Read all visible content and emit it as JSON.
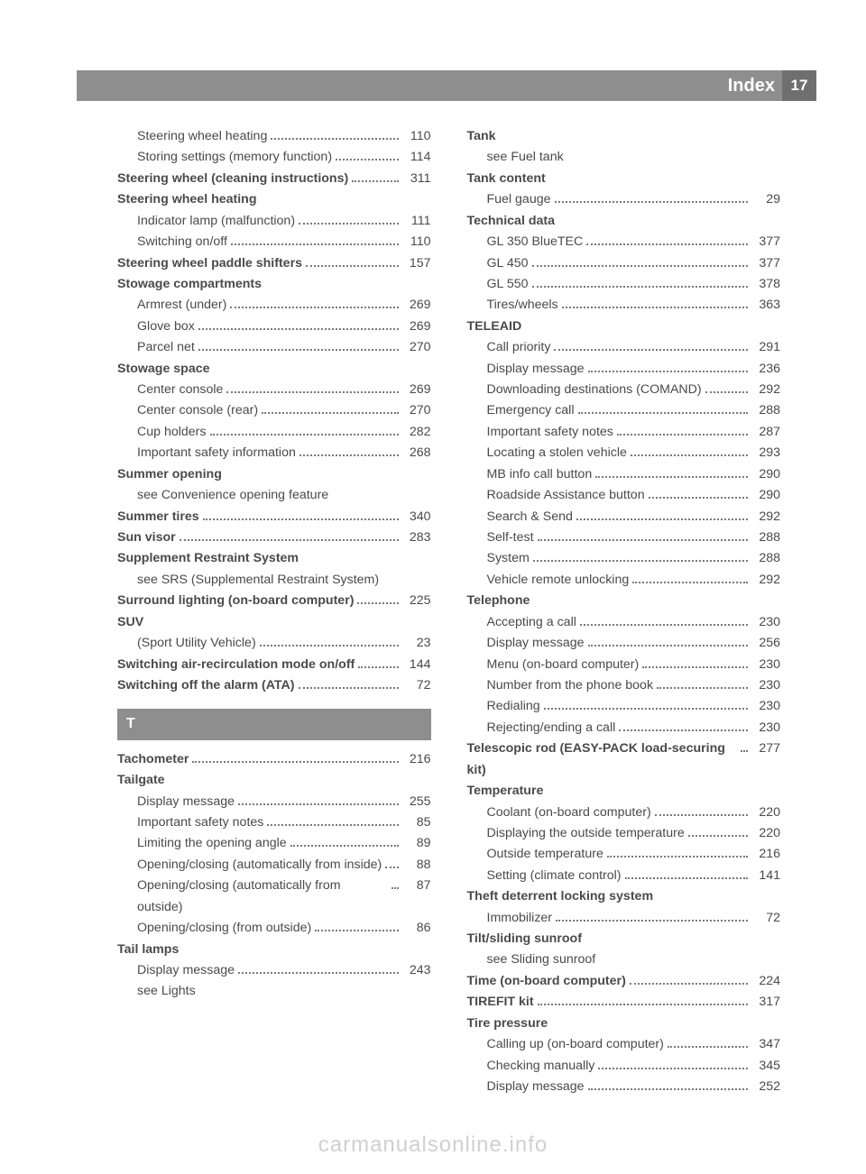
{
  "header": {
    "title": "Index",
    "page": "17"
  },
  "section_divider": "T",
  "watermark": "carmanualsonline.info",
  "left": [
    {
      "t": "sub",
      "label": "Steering wheel heating",
      "page": "110"
    },
    {
      "t": "sub",
      "label": "Storing settings (memory function)",
      "page": "114"
    },
    {
      "t": "top",
      "bold": true,
      "label": "Steering wheel (cleaning instructions)",
      "page": "311"
    },
    {
      "t": "top",
      "bold": true,
      "label": "Steering wheel heating"
    },
    {
      "t": "sub",
      "label": "Indicator lamp (malfunction)",
      "page": "111"
    },
    {
      "t": "sub",
      "label": "Switching on/off",
      "page": "110"
    },
    {
      "t": "top",
      "bold": true,
      "label": "Steering wheel paddle shifters",
      "page": "157"
    },
    {
      "t": "top",
      "bold": true,
      "label": "Stowage compartments"
    },
    {
      "t": "sub",
      "label": "Armrest (under)",
      "page": "269"
    },
    {
      "t": "sub",
      "label": "Glove box",
      "page": "269"
    },
    {
      "t": "sub",
      "label": "Parcel net",
      "page": "270"
    },
    {
      "t": "top",
      "bold": true,
      "label": "Stowage space"
    },
    {
      "t": "sub",
      "label": "Center console",
      "page": "269"
    },
    {
      "t": "sub",
      "label": "Center console (rear)",
      "page": "270"
    },
    {
      "t": "sub",
      "label": "Cup holders",
      "page": "282"
    },
    {
      "t": "sub",
      "label": "Important safety information",
      "page": "268"
    },
    {
      "t": "top",
      "bold": true,
      "label": "Summer opening"
    },
    {
      "t": "sub",
      "label": "see Convenience opening feature"
    },
    {
      "t": "top",
      "bold": true,
      "label": "Summer tires",
      "page": "340"
    },
    {
      "t": "top",
      "bold": true,
      "label": "Sun visor",
      "page": "283"
    },
    {
      "t": "top",
      "bold": true,
      "label": "Supplement Restraint System"
    },
    {
      "t": "sub",
      "label": "see SRS (Supplemental Restraint System)"
    },
    {
      "t": "top",
      "bold": true,
      "label": "Surround lighting (on-board computer)",
      "page": "225"
    },
    {
      "t": "top",
      "bold": true,
      "label": "SUV"
    },
    {
      "t": "sub",
      "label": "(Sport Utility Vehicle)",
      "page": "23"
    },
    {
      "t": "top",
      "bold": true,
      "label": "Switching air-recirculation mode on/off",
      "page": "144"
    },
    {
      "t": "top",
      "bold": true,
      "label": "Switching off the alarm (ATA)",
      "page": "72"
    },
    {
      "t": "divider"
    },
    {
      "t": "top",
      "bold": true,
      "label": "Tachometer",
      "page": "216"
    },
    {
      "t": "top",
      "bold": true,
      "label": "Tailgate"
    },
    {
      "t": "sub",
      "label": "Display message",
      "page": "255"
    },
    {
      "t": "sub",
      "label": "Important safety notes",
      "page": "85"
    },
    {
      "t": "sub",
      "label": "Limiting the opening angle",
      "page": "89"
    },
    {
      "t": "sub",
      "label": "Opening/closing (automatically from inside)",
      "page": "88"
    },
    {
      "t": "sub",
      "label": "Opening/closing (automatically from outside)",
      "page": "87"
    },
    {
      "t": "sub",
      "label": "Opening/closing (from outside)",
      "page": "86"
    },
    {
      "t": "top",
      "bold": true,
      "label": "Tail lamps"
    },
    {
      "t": "sub",
      "label": "Display message",
      "page": "243"
    },
    {
      "t": "sub",
      "label": "see Lights"
    }
  ],
  "right": [
    {
      "t": "top",
      "bold": true,
      "label": "Tank"
    },
    {
      "t": "sub",
      "label": "see Fuel tank"
    },
    {
      "t": "top",
      "bold": true,
      "label": "Tank content"
    },
    {
      "t": "sub",
      "label": "Fuel gauge",
      "page": "29"
    },
    {
      "t": "top",
      "bold": true,
      "label": "Technical data"
    },
    {
      "t": "sub",
      "label": "GL 350 BlueTEC",
      "page": "377"
    },
    {
      "t": "sub",
      "label": "GL 450",
      "page": "377"
    },
    {
      "t": "sub",
      "label": "GL 550",
      "page": "378"
    },
    {
      "t": "sub",
      "label": "Tires/wheels",
      "page": "363"
    },
    {
      "t": "top",
      "bold": true,
      "label": "TELEAID"
    },
    {
      "t": "sub",
      "label": "Call priority",
      "page": "291"
    },
    {
      "t": "sub",
      "label": "Display message",
      "page": "236"
    },
    {
      "t": "sub",
      "label": "Downloading destinations (COMAND)",
      "page": "292"
    },
    {
      "t": "sub",
      "label": "Emergency call",
      "page": "288"
    },
    {
      "t": "sub",
      "label": "Important safety notes",
      "page": "287"
    },
    {
      "t": "sub",
      "label": "Locating a stolen vehicle",
      "page": "293"
    },
    {
      "t": "sub",
      "label": "MB info call button",
      "page": "290"
    },
    {
      "t": "sub",
      "label": "Roadside Assistance button",
      "page": "290"
    },
    {
      "t": "sub",
      "label": "Search & Send",
      "page": "292"
    },
    {
      "t": "sub",
      "label": "Self-test",
      "page": "288"
    },
    {
      "t": "sub",
      "label": "System",
      "page": "288"
    },
    {
      "t": "sub",
      "label": "Vehicle remote unlocking",
      "page": "292"
    },
    {
      "t": "top",
      "bold": true,
      "label": "Telephone"
    },
    {
      "t": "sub",
      "label": "Accepting a call",
      "page": "230"
    },
    {
      "t": "sub",
      "label": "Display message",
      "page": "256"
    },
    {
      "t": "sub",
      "label": "Menu (on-board computer)",
      "page": "230"
    },
    {
      "t": "sub",
      "label": "Number from the phone book",
      "page": "230"
    },
    {
      "t": "sub",
      "label": "Redialing",
      "page": "230"
    },
    {
      "t": "sub",
      "label": "Rejecting/ending a call",
      "page": "230"
    },
    {
      "t": "top",
      "bold": true,
      "label": "Telescopic rod (EASY-PACK load-securing kit)",
      "page": "277"
    },
    {
      "t": "top",
      "bold": true,
      "label": "Temperature"
    },
    {
      "t": "sub",
      "label": "Coolant (on-board computer)",
      "page": "220"
    },
    {
      "t": "sub",
      "label": "Displaying the outside temperature",
      "page": "220"
    },
    {
      "t": "sub",
      "label": "Outside temperature",
      "page": "216"
    },
    {
      "t": "sub",
      "label": "Setting (climate control)",
      "page": "141"
    },
    {
      "t": "top",
      "bold": true,
      "label": "Theft deterrent locking system"
    },
    {
      "t": "sub",
      "label": "Immobilizer",
      "page": "72"
    },
    {
      "t": "top",
      "bold": true,
      "label": "Tilt/sliding sunroof"
    },
    {
      "t": "sub",
      "label": "see Sliding sunroof"
    },
    {
      "t": "top",
      "bold": true,
      "label": "Time (on-board computer)",
      "page": "224"
    },
    {
      "t": "top",
      "bold": true,
      "label": "TIREFIT kit",
      "page": "317"
    },
    {
      "t": "top",
      "bold": true,
      "label": "Tire pressure"
    },
    {
      "t": "sub",
      "label": "Calling up (on-board computer)",
      "page": "347"
    },
    {
      "t": "sub",
      "label": "Checking manually",
      "page": "345"
    },
    {
      "t": "sub",
      "label": "Display message",
      "page": "252"
    }
  ]
}
